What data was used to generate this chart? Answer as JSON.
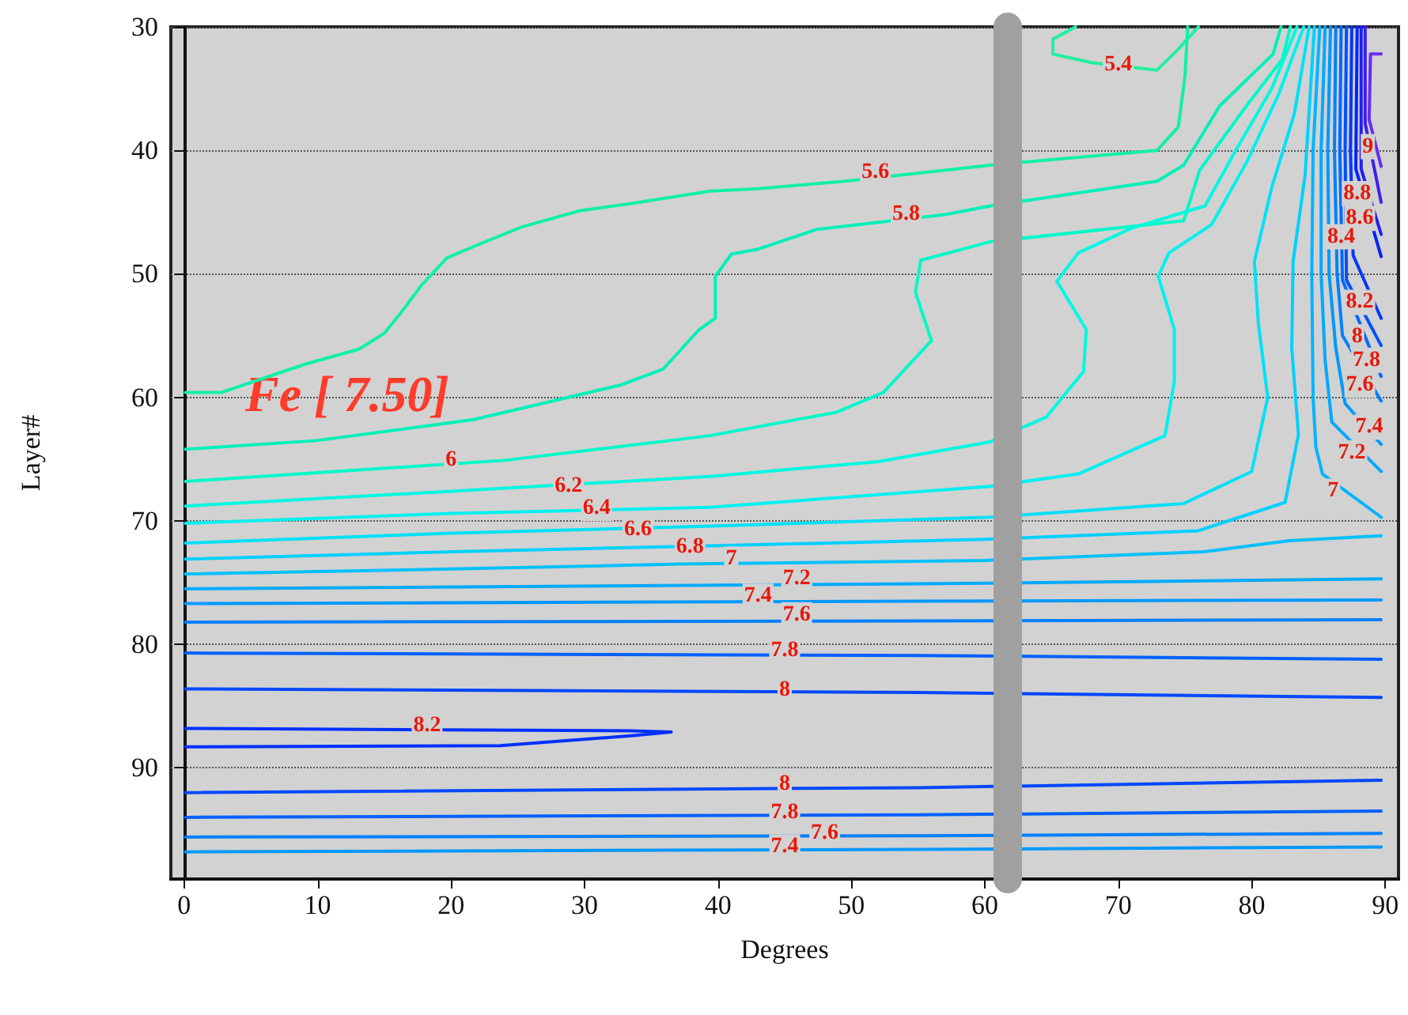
{
  "chart_data": {
    "type": "line",
    "xlabel": "Degrees",
    "ylabel": "Layer#",
    "xlim": [
      -1,
      91
    ],
    "ylim": [
      99,
      30
    ],
    "xticks": [
      0,
      10,
      20,
      30,
      40,
      50,
      60,
      70,
      80,
      90
    ],
    "yticks": [
      30,
      40,
      50,
      60,
      70,
      80,
      90
    ],
    "grid": "y",
    "marker": "none",
    "line_style": "solid",
    "series": [
      {
        "color": "#20f0a0",
        "x": [
          66.8,
          65.1,
          65.1,
          68.0,
          72.9,
          74.5,
          76.0
        ],
        "values": [
          30,
          31,
          32.2,
          32.9,
          33.5,
          31.8,
          30
        ]
      },
      {
        "color": "#10f0a8",
        "x": [
          0.1,
          2.8,
          9.1,
          13.1,
          15.0,
          16.2,
          17.8,
          19.7,
          22.1,
          25.3,
          29.6,
          33.5,
          39.4,
          43.0,
          49.5,
          60.4,
          72.9,
          74.5,
          75.0,
          75.2
        ],
        "values": [
          59.6,
          59.6,
          57.3,
          56.1,
          54.8,
          53.2,
          50.9,
          48.7,
          47.6,
          46.2,
          44.9,
          44.3,
          43.3,
          43.1,
          42.5,
          41.2,
          40.0,
          38.1,
          34,
          30
        ]
      },
      {
        "color": "#00f0b8",
        "x": [
          0.1,
          9.9,
          21.7,
          32.7,
          35.9,
          38.6,
          39.8,
          39.8,
          41.0,
          43.0,
          47.4,
          57.0,
          60.4,
          72.9,
          74.9,
          77.6,
          81.6,
          82.2
        ],
        "values": [
          64.2,
          63.5,
          61.8,
          59.0,
          57.7,
          54.5,
          53.6,
          50.2,
          48.4,
          48.0,
          46.4,
          45.2,
          44.5,
          42.5,
          41.2,
          36.4,
          32.2,
          30
        ]
      },
      {
        "color": "#00f8c8",
        "x": [
          0.1,
          24.0,
          39.4,
          48.9,
          52.4,
          56.0,
          54.8,
          55.2,
          60.4,
          74.9,
          76.1,
          79.6,
          82.3,
          82.9
        ],
        "values": [
          66.8,
          65.1,
          63.1,
          61.2,
          59.6,
          55.4,
          51.5,
          48.9,
          47.4,
          45.7,
          41.6,
          36.4,
          32.6,
          30
        ]
      },
      {
        "color": "#00f8e0",
        "x": [
          0.1,
          20,
          39.4,
          52,
          60.4,
          64.6,
          67.4,
          67.6,
          65.4,
          67.0,
          71.0,
          76.5,
          78.8,
          81.5,
          83.4
        ],
        "values": [
          68.8,
          67.6,
          66.4,
          65.2,
          63.6,
          61.6,
          57.9,
          54.5,
          50.6,
          48.3,
          46.3,
          44.5,
          40,
          35,
          30
        ]
      },
      {
        "color": "#00f0f0",
        "x": [
          0.1,
          20,
          39.4,
          60.4,
          67,
          73.5,
          74.2,
          74.2,
          73.0,
          73.8,
          77,
          79.6,
          82,
          83.9
        ],
        "values": [
          70.2,
          69.4,
          68.9,
          67.2,
          66.2,
          63.1,
          58.7,
          54.5,
          50.2,
          48.3,
          46,
          41,
          35.5,
          30
        ]
      },
      {
        "color": "#00e0f8",
        "x": [
          0.1,
          20,
          40,
          60.4,
          74.9,
          80,
          81.2,
          80.5,
          80.2,
          81.5,
          83.2,
          84.3
        ],
        "values": [
          71.8,
          71.0,
          70.4,
          69.7,
          68.6,
          66,
          60,
          54,
          49,
          43,
          37,
          30
        ]
      },
      {
        "color": "#00d0ff",
        "x": [
          0.1,
          20,
          40,
          60,
          76,
          82.5,
          83.5,
          83.0,
          83.1,
          84,
          84.7
        ],
        "values": [
          73.1,
          72.5,
          72.0,
          71.5,
          70.8,
          68.5,
          63,
          56,
          49,
          42,
          30
        ]
      },
      {
        "color": "#00c0ff",
        "x": [
          0.1,
          20,
          37.1,
          60,
          76.4,
          82.8,
          89.7
        ],
        "values": [
          74.3,
          73.9,
          73.5,
          73.2,
          72.5,
          71.6,
          71.2
        ]
      },
      {
        "color": "#00b4ff",
        "x": [
          85.1,
          84.6,
          84.5,
          84.6,
          84.8,
          85.3,
          89.7
        ],
        "values": [
          30,
          40,
          50,
          60,
          64,
          66.2,
          69.7
        ]
      },
      {
        "color": "#00a8ff",
        "x": [
          85.5,
          85.2,
          85.2,
          85.5,
          86.0,
          89.7
        ],
        "values": [
          30,
          40,
          50,
          57,
          62,
          66.0
        ]
      },
      {
        "color": "#0098ff",
        "x": [
          85.9,
          85.7,
          85.8,
          86.3,
          87.0,
          89.7
        ],
        "values": [
          30,
          40,
          50,
          56,
          60.5,
          63.8
        ]
      },
      {
        "color": "#0080ff",
        "x": [
          86.3,
          86.2,
          86.4,
          86.8,
          89.7
        ],
        "values": [
          30,
          40,
          50,
          55,
          60.3
        ]
      },
      {
        "color": "#0068ff",
        "x": [
          86.7,
          86.6,
          86.8,
          89.7
        ],
        "values": [
          30,
          40,
          50.5,
          58.3
        ]
      },
      {
        "color": "#0050ff",
        "x": [
          87.1,
          87.0,
          87.1,
          89.7
        ],
        "values": [
          30,
          40,
          50.5,
          55.8
        ]
      },
      {
        "color": "#0038ff",
        "x": [
          87.5,
          87.4,
          87.6,
          89.7
        ],
        "values": [
          30,
          40,
          48.5,
          53.6
        ]
      },
      {
        "color": "#0024f8",
        "x": [
          87.9,
          87.8,
          89.7
        ],
        "values": [
          30,
          41.5,
          48.6
        ]
      },
      {
        "color": "#2020f0",
        "x": [
          88.2,
          88.2,
          89.7
        ],
        "values": [
          30,
          41.5,
          46.8
        ]
      },
      {
        "color": "#3a20f0",
        "x": [
          88.5,
          88.5,
          89.7
        ],
        "values": [
          30,
          37.8,
          44.2
        ]
      },
      {
        "color": "#6a2cf0",
        "x": [
          89.7,
          88.9,
          88.8,
          89.7
        ],
        "values": [
          32.2,
          32.2,
          37.5,
          41.3
        ]
      },
      {
        "color": "#00aaff",
        "x": [
          0.1,
          55,
          89.7
        ],
        "values": [
          75.5,
          75.1,
          74.7
        ]
      },
      {
        "color": "#0098ff",
        "x": [
          0.1,
          55,
          89.7
        ],
        "values": [
          76.7,
          76.5,
          76.4
        ]
      },
      {
        "color": "#0080ff",
        "x": [
          0.1,
          55,
          89.7
        ],
        "values": [
          78.2,
          78.1,
          78.0
        ]
      },
      {
        "color": "#0060ff",
        "x": [
          0.1,
          55,
          89.7
        ],
        "values": [
          80.7,
          80.9,
          81.2
        ]
      },
      {
        "color": "#0048ff",
        "x": [
          0.1,
          55,
          89.7
        ],
        "values": [
          83.6,
          83.9,
          84.3
        ]
      },
      {
        "color": "#0030ff",
        "x": [
          0.1,
          33.5,
          36.5,
          33.5,
          23.7,
          0.1
        ],
        "values": [
          86.8,
          87.0,
          87.1,
          87.4,
          88.2,
          88.3
        ]
      },
      {
        "color": "#0048ff",
        "x": [
          0.1,
          55,
          89.7
        ],
        "values": [
          92.0,
          91.6,
          91.0
        ]
      },
      {
        "color": "#0060ff",
        "x": [
          0.1,
          55,
          89.7
        ],
        "values": [
          94.0,
          93.8,
          93.5
        ]
      },
      {
        "color": "#0080ff",
        "x": [
          0.1,
          55,
          89.7
        ],
        "values": [
          95.6,
          95.5,
          95.3
        ]
      },
      {
        "color": "#0098ff",
        "x": [
          0.1,
          55,
          89.7
        ],
        "values": [
          96.8,
          96.6,
          96.4
        ]
      }
    ],
    "ref_lines": [
      {
        "axis": "x",
        "value": 61.7,
        "color": "#a0a0a0"
      }
    ],
    "annotations": [
      "Fe [ 7.50]",
      {
        "text": "5.4",
        "x": 70.0,
        "y": 33.1
      },
      {
        "text": "5.6",
        "x": 51.8,
        "y": 41.8
      },
      {
        "text": "5.8",
        "x": 54.1,
        "y": 45.2
      },
      {
        "text": "6",
        "x": 20.0,
        "y": 65.1
      },
      {
        "text": "6.2",
        "x": 28.8,
        "y": 67.2
      },
      {
        "text": "6.4",
        "x": 30.9,
        "y": 69.0
      },
      {
        "text": "6.6",
        "x": 34.0,
        "y": 70.7
      },
      {
        "text": "6.8",
        "x": 37.9,
        "y": 72.1
      },
      {
        "text": "7",
        "x": 41.0,
        "y": 73.1
      },
      {
        "text": "7.2",
        "x": 45.9,
        "y": 74.7
      },
      {
        "text": "7.4",
        "x": 43.0,
        "y": 76.1
      },
      {
        "text": "7.6",
        "x": 45.9,
        "y": 77.6
      },
      {
        "text": "7.8",
        "x": 45.0,
        "y": 80.5
      },
      {
        "text": "8",
        "x": 45.0,
        "y": 83.7
      },
      {
        "text": "8.2",
        "x": 18.2,
        "y": 86.6
      },
      {
        "text": "8",
        "x": 45.0,
        "y": 91.3
      },
      {
        "text": "7.8",
        "x": 45.0,
        "y": 93.6
      },
      {
        "text": "7.6",
        "x": 48.0,
        "y": 95.3
      },
      {
        "text": "7.4",
        "x": 45.0,
        "y": 96.4
      },
      {
        "text": "9",
        "x": 88.7,
        "y": 39.7
      },
      {
        "text": "8.8",
        "x": 87.9,
        "y": 43.5
      },
      {
        "text": "8.6",
        "x": 88.1,
        "y": 45.5
      },
      {
        "text": "8.4",
        "x": 86.7,
        "y": 47.0
      },
      {
        "text": "8.2",
        "x": 88.1,
        "y": 52.3
      },
      {
        "text": "8",
        "x": 87.9,
        "y": 55.1
      },
      {
        "text": "7.8",
        "x": 88.6,
        "y": 57.0
      },
      {
        "text": "7.6",
        "x": 88.1,
        "y": 59.0
      },
      {
        "text": "7.4",
        "x": 88.8,
        "y": 62.4
      },
      {
        "text": "7.2",
        "x": 87.5,
        "y": 64.5
      },
      {
        "text": "7",
        "x": 86.1,
        "y": 67.6
      }
    ]
  }
}
